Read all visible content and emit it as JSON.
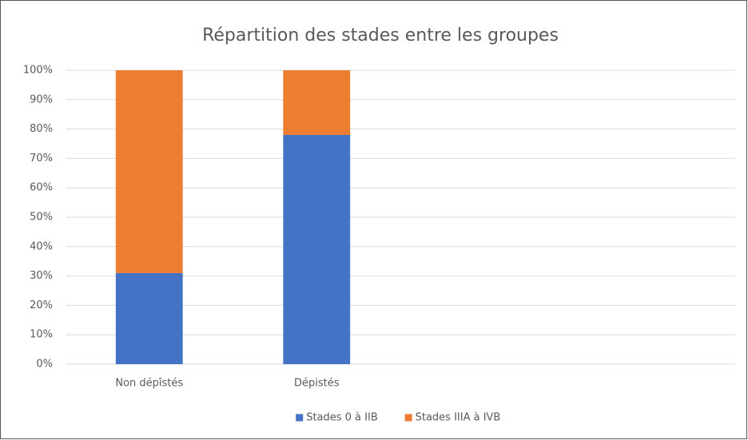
{
  "chart_data": {
    "type": "stacked_bar",
    "title": "Répartition des stades entre les groupes",
    "categories": [
      "Non dépîstés",
      "Dépistés",
      null,
      null
    ],
    "series": [
      {
        "name": "Stades 0 à IIB",
        "color": "#4472c4",
        "values": [
          31,
          78,
          null,
          null
        ]
      },
      {
        "name": "Stades IIIA à IVB",
        "color": "#ed7d31",
        "values": [
          69,
          22,
          null,
          null
        ]
      }
    ],
    "ylim": [
      0,
      100
    ],
    "yticks": [
      {
        "value": 0,
        "label": "0%"
      },
      {
        "value": 10,
        "label": "10%"
      },
      {
        "value": 20,
        "label": "20%"
      },
      {
        "value": 30,
        "label": "30%"
      },
      {
        "value": 40,
        "label": "40%"
      },
      {
        "value": 50,
        "label": "50%"
      },
      {
        "value": 60,
        "label": "60%"
      },
      {
        "value": 70,
        "label": "70%"
      },
      {
        "value": 80,
        "label": "80%"
      },
      {
        "value": 90,
        "label": "90%"
      },
      {
        "value": 100,
        "label": "100%"
      }
    ],
    "grid": true,
    "legend": "bottom"
  }
}
